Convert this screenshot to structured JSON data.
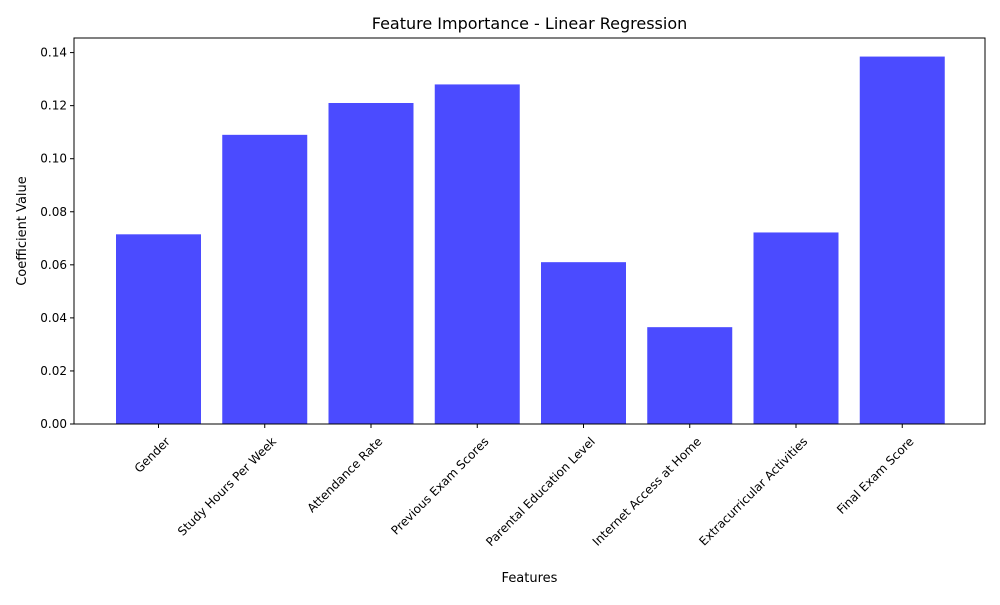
{
  "chart_data": {
    "type": "bar",
    "title": "Feature Importance - Linear Regression",
    "xlabel": "Features",
    "ylabel": "Coefficient Value",
    "categories": [
      "Gender",
      "Study Hours Per Week",
      "Attendance Rate",
      "Previous Exam Scores",
      "Parental Education Level",
      "Internet Access at Home",
      "Extracurricular Activities",
      "Final Exam Score"
    ],
    "values": [
      0.0715,
      0.109,
      0.121,
      0.128,
      0.061,
      0.0365,
      0.0722,
      0.1385
    ],
    "ylim": [
      0,
      0.1455
    ],
    "yticks": [
      "0.00",
      "0.02",
      "0.04",
      "0.06",
      "0.08",
      "0.10",
      "0.12",
      "0.14"
    ],
    "grid": false,
    "legend": "none",
    "bar_color": "#4b4bff"
  }
}
